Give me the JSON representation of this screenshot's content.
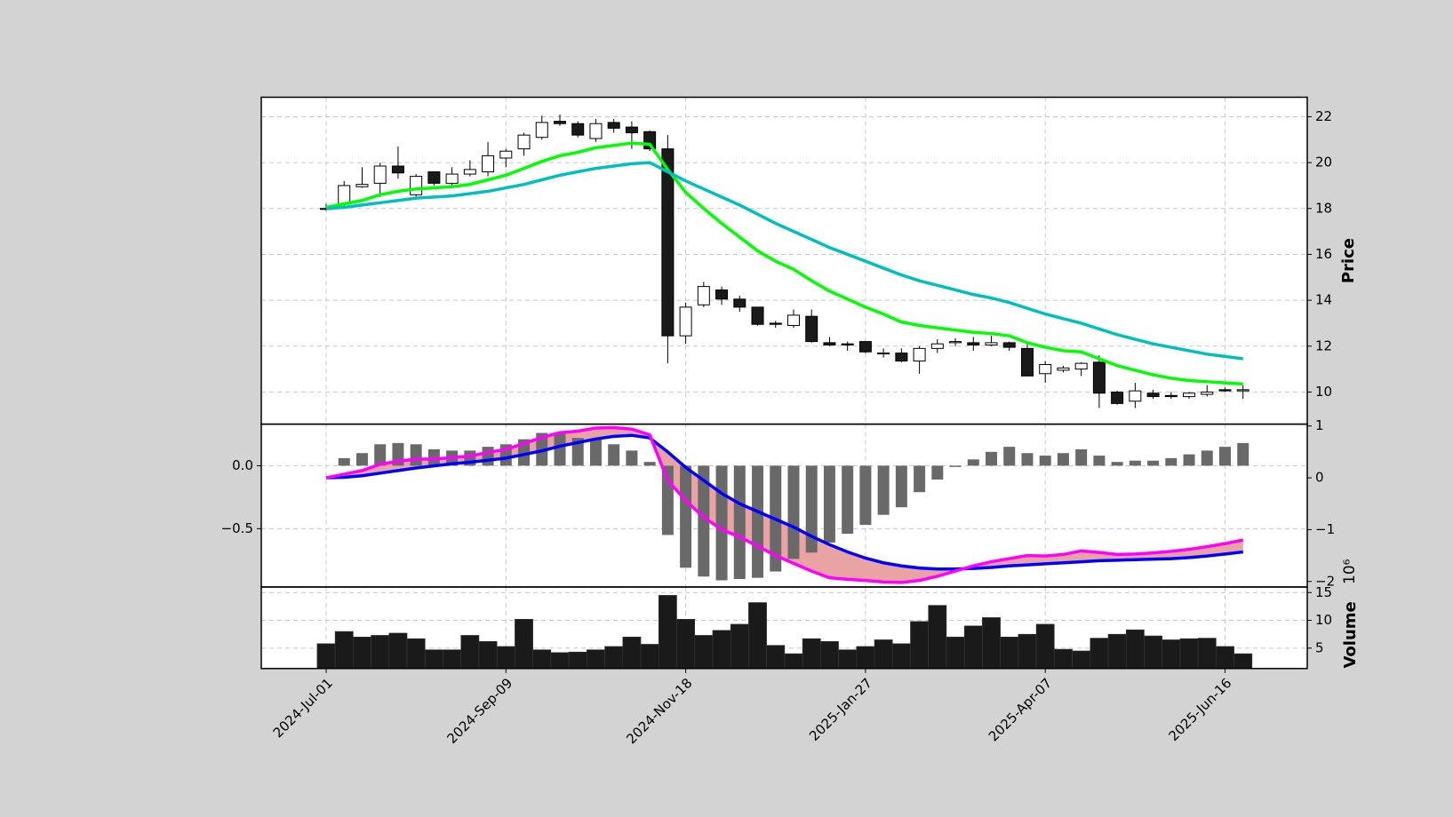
{
  "chart_data": [
    {
      "type": "candlestick",
      "ylabel": "Price",
      "grid": true,
      "up_color": "#ffffff",
      "down_color": "#1a1a1a",
      "ylim": [
        8.6,
        22.85
      ],
      "yticks": [
        10,
        12,
        14,
        16,
        18,
        20,
        22
      ],
      "open": [
        18.0,
        18.2,
        18.95,
        19.1,
        19.85,
        18.6,
        19.6,
        19.1,
        19.5,
        19.6,
        20.2,
        20.6,
        21.1,
        21.8,
        21.7,
        21.05,
        21.75,
        21.55,
        21.35,
        20.6,
        12.45,
        13.8,
        14.45,
        14.05,
        13.7,
        13.0,
        12.9,
        13.3,
        12.15,
        12.1,
        12.2,
        11.7,
        11.7,
        11.35,
        11.9,
        12.15,
        12.15,
        12.05,
        12.15,
        11.9,
        10.8,
        10.95,
        11.0,
        11.3,
        10.0,
        9.6,
        9.95,
        9.85,
        9.8,
        9.9,
        10.1,
        10.05
      ],
      "high": [
        18.2,
        19.2,
        19.8,
        20.0,
        20.7,
        19.5,
        19.6,
        19.8,
        20.1,
        20.9,
        20.6,
        21.3,
        22.05,
        22.1,
        21.8,
        21.9,
        21.9,
        21.8,
        21.4,
        21.2,
        13.9,
        14.8,
        14.6,
        14.2,
        13.7,
        13.1,
        13.6,
        13.6,
        12.4,
        12.2,
        12.2,
        11.9,
        11.9,
        12.0,
        12.3,
        12.35,
        12.4,
        12.45,
        12.2,
        12.1,
        11.35,
        11.15,
        11.3,
        11.6,
        10.05,
        10.4,
        10.1,
        10.0,
        10.0,
        10.3,
        10.2,
        10.3
      ],
      "low": [
        17.9,
        18.1,
        18.9,
        18.5,
        19.3,
        18.4,
        19.0,
        19.0,
        19.4,
        19.4,
        19.8,
        20.3,
        21.0,
        21.6,
        21.1,
        20.9,
        21.3,
        20.6,
        20.5,
        11.25,
        12.1,
        13.7,
        13.8,
        13.5,
        12.9,
        12.8,
        12.8,
        12.15,
        12.0,
        11.8,
        11.7,
        11.5,
        11.3,
        10.8,
        11.7,
        12.0,
        11.8,
        12.0,
        11.8,
        10.7,
        10.4,
        10.85,
        10.7,
        9.3,
        9.45,
        9.3,
        9.7,
        9.7,
        9.7,
        9.8,
        10.0,
        9.7
      ],
      "close": [
        18.0,
        19.0,
        19.05,
        19.85,
        19.55,
        19.4,
        19.1,
        19.5,
        19.7,
        20.3,
        20.5,
        21.2,
        21.75,
        21.7,
        21.2,
        21.7,
        21.5,
        21.3,
        20.6,
        12.45,
        13.7,
        14.6,
        14.05,
        13.7,
        12.95,
        12.95,
        13.35,
        12.2,
        12.05,
        12.05,
        11.75,
        11.7,
        11.35,
        11.9,
        12.1,
        12.2,
        12.05,
        12.15,
        11.95,
        10.7,
        11.2,
        11.05,
        11.25,
        9.95,
        9.5,
        10.05,
        9.8,
        9.8,
        9.95,
        10.0,
        10.05,
        10.1
      ],
      "series": [
        {
          "color": "#00ff00",
          "values": [
            18.05,
            18.2,
            18.35,
            18.6,
            18.75,
            18.85,
            18.9,
            18.95,
            19.05,
            19.25,
            19.45,
            19.75,
            20.05,
            20.3,
            20.45,
            20.65,
            20.75,
            20.85,
            20.8,
            19.7,
            18.7,
            18.0,
            17.35,
            16.75,
            16.15,
            15.7,
            15.35,
            14.85,
            14.4,
            14.05,
            13.7,
            13.4,
            13.05,
            12.9,
            12.8,
            12.7,
            12.6,
            12.55,
            12.45,
            12.15,
            11.95,
            11.8,
            11.75,
            11.45,
            11.15,
            10.95,
            10.75,
            10.6,
            10.5,
            10.45,
            10.4,
            10.35
          ]
        },
        {
          "color": "#00bfbf",
          "values": [
            18.0,
            18.05,
            18.15,
            18.25,
            18.35,
            18.45,
            18.5,
            18.55,
            18.65,
            18.75,
            18.9,
            19.05,
            19.25,
            19.45,
            19.6,
            19.75,
            19.85,
            19.95,
            20.0,
            19.6,
            19.2,
            18.85,
            18.5,
            18.15,
            17.75,
            17.35,
            17.0,
            16.65,
            16.3,
            16.0,
            15.7,
            15.4,
            15.1,
            14.85,
            14.65,
            14.45,
            14.25,
            14.1,
            13.9,
            13.65,
            13.4,
            13.2,
            13.0,
            12.75,
            12.5,
            12.3,
            12.1,
            11.95,
            11.8,
            11.65,
            11.55,
            11.45
          ]
        }
      ]
    },
    {
      "type": "macd",
      "grid": true,
      "fill_color": "#e9a3a3",
      "ylim": [
        -0.963,
        0.33
      ],
      "yticks": [
        {
          "value": 0,
          "label": "0.0"
        },
        {
          "value": -0.5,
          "label": "−0.5"
        }
      ],
      "y2lim": [
        -2.107,
        1.036
      ],
      "y2ticks": [
        1,
        0,
        {
          "value": -1,
          "label": "−1"
        },
        {
          "value": -2,
          "label": "−2"
        }
      ],
      "bars": {
        "color": "#696969",
        "values": [
          0,
          0.06,
          0.1,
          0.17,
          0.18,
          0.17,
          0.13,
          0.12,
          0.12,
          0.15,
          0.17,
          0.21,
          0.26,
          0.26,
          0.22,
          0.21,
          0.17,
          0.12,
          0.03,
          -0.55,
          -0.81,
          -0.88,
          -0.91,
          -0.9,
          -0.89,
          -0.84,
          -0.74,
          -0.69,
          -0.61,
          -0.54,
          -0.47,
          -0.39,
          -0.33,
          -0.21,
          -0.11,
          -0.01,
          0.05,
          0.11,
          0.15,
          0.1,
          0.08,
          0.1,
          0.13,
          0.08,
          0.03,
          0.04,
          0.04,
          0.06,
          0.09,
          0.12,
          0.15,
          0.18
        ]
      },
      "series": [
        {
          "color": "#0000ff",
          "axis": "y2",
          "values": [
            0,
            0.01,
            0.04,
            0.09,
            0.14,
            0.19,
            0.23,
            0.27,
            0.3,
            0.34,
            0.38,
            0.45,
            0.52,
            0.61,
            0.68,
            0.75,
            0.8,
            0.82,
            0.77,
            0.5,
            0.2,
            -0.05,
            -0.3,
            -0.5,
            -0.65,
            -0.8,
            -0.95,
            -1.13,
            -1.29,
            -1.43,
            -1.55,
            -1.64,
            -1.7,
            -1.74,
            -1.76,
            -1.76,
            -1.75,
            -1.73,
            -1.7,
            -1.68,
            -1.66,
            -1.64,
            -1.62,
            -1.6,
            -1.59,
            -1.58,
            -1.57,
            -1.56,
            -1.54,
            -1.51,
            -1.47,
            -1.43
          ]
        },
        {
          "color": "#ff00ff",
          "axis": "y2",
          "values": [
            0,
            0.07,
            0.14,
            0.26,
            0.32,
            0.36,
            0.36,
            0.39,
            0.42,
            0.49,
            0.55,
            0.66,
            0.78,
            0.87,
            0.9,
            0.96,
            0.97,
            0.94,
            0.83,
            -0.05,
            -0.44,
            -0.76,
            -1.0,
            -1.14,
            -1.32,
            -1.5,
            -1.65,
            -1.8,
            -1.93,
            -1.96,
            -1.98,
            -2.01,
            -2.02,
            -1.98,
            -1.9,
            -1.8,
            -1.7,
            -1.62,
            -1.56,
            -1.5,
            -1.51,
            -1.48,
            -1.41,
            -1.44,
            -1.48,
            -1.47,
            -1.45,
            -1.42,
            -1.38,
            -1.33,
            -1.27,
            -1.2
          ]
        }
      ]
    },
    {
      "type": "bar",
      "ylabel": "Volume",
      "y_offset_label": "10⁶",
      "grid": true,
      "color": "#1a1a1a",
      "ylim": [
        1.33,
        16
      ],
      "yticks": [
        5,
        10,
        15
      ],
      "categories": [
        "2024-Jul-01",
        null,
        null,
        null,
        null,
        null,
        null,
        null,
        null,
        null,
        "2024-Sep-09",
        null,
        null,
        null,
        null,
        null,
        null,
        null,
        null,
        null,
        "2024-Nov-18",
        null,
        null,
        null,
        null,
        null,
        null,
        null,
        null,
        null,
        "2025-Jan-27",
        null,
        null,
        null,
        null,
        null,
        null,
        null,
        null,
        null,
        "2025-Apr-07",
        null,
        null,
        null,
        null,
        null,
        null,
        null,
        null,
        null,
        "2025-Jun-16",
        null
      ],
      "values": [
        5.8,
        8,
        7,
        7.3,
        7.7,
        6.7,
        4.7,
        4.7,
        7.3,
        6.2,
        5.3,
        10.2,
        4.7,
        4.2,
        4.3,
        4.7,
        5.3,
        7,
        5.7,
        14.5,
        10.2,
        7.3,
        8.2,
        9.3,
        13.2,
        5.5,
        4,
        6.7,
        6.2,
        4.7,
        5.3,
        6.5,
        5.8,
        9.8,
        12.7,
        7,
        9,
        10.5,
        7,
        7.5,
        9.3,
        4.8,
        4.5,
        6.8,
        7.5,
        8.3,
        7.2,
        6.5,
        6.7,
        6.8,
        5.3,
        4
      ]
    }
  ]
}
